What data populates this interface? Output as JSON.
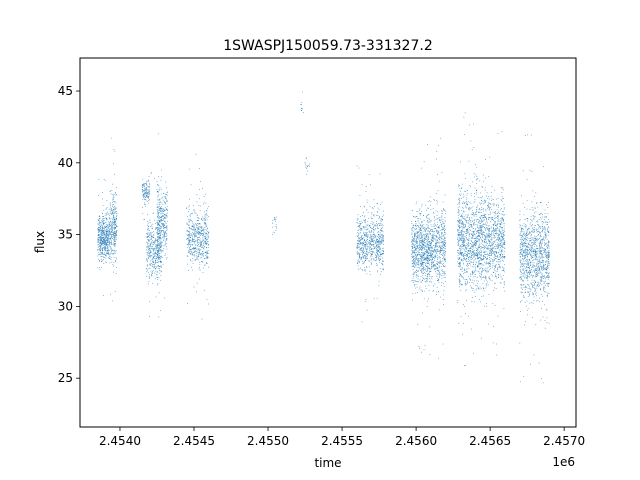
{
  "chart_data": {
    "type": "scatter",
    "title": "1SWASPJ150059.73-331327.2",
    "xlabel": "time",
    "ylabel": "flux",
    "x_offset_label": "1e6",
    "xlim": [
      2.45373,
      2.45708
    ],
    "ylim": [
      21.6,
      47.3
    ],
    "x_ticks": [
      2.454,
      2.4545,
      2.455,
      2.4555,
      2.456,
      2.4565,
      2.457
    ],
    "x_tick_labels": [
      "2.4540",
      "2.4545",
      "2.4550",
      "2.4555",
      "2.4560",
      "2.4565",
      "2.4570"
    ],
    "y_ticks": [
      25,
      30,
      35,
      40,
      45
    ],
    "y_tick_labels": [
      "25",
      "30",
      "35",
      "40",
      "45"
    ],
    "grid": false,
    "marker_color": "#1f77b4",
    "clusters": [
      {
        "x_range": [
          2.45385,
          2.45393
        ],
        "y_center": 34.8,
        "y_spread": 2.2,
        "n": 500
      },
      {
        "x_range": [
          2.45393,
          2.45398
        ],
        "y_center": 35.5,
        "y_spread": 3.0,
        "n": 300
      },
      {
        "x_range": [
          2.45415,
          2.4542
        ],
        "y_center": 38.0,
        "y_spread": 1.0,
        "n": 120
      },
      {
        "x_range": [
          2.45418,
          2.45428
        ],
        "y_center": 33.8,
        "y_spread": 2.5,
        "n": 400
      },
      {
        "x_range": [
          2.45425,
          2.45432
        ],
        "y_center": 36.0,
        "y_spread": 3.0,
        "n": 350
      },
      {
        "x_range": [
          2.45445,
          2.4546
        ],
        "y_center": 34.8,
        "y_spread": 2.6,
        "n": 550
      },
      {
        "x_range": [
          2.45503,
          2.45506
        ],
        "y_center": 35.8,
        "y_spread": 1.0,
        "n": 20
      },
      {
        "x_range": [
          2.45522,
          2.45524
        ],
        "y_center": 43.8,
        "y_spread": 0.5,
        "n": 10
      },
      {
        "x_range": [
          2.45525,
          2.45528
        ],
        "y_center": 39.8,
        "y_spread": 1.0,
        "n": 15
      },
      {
        "x_range": [
          2.4556,
          2.45578
        ],
        "y_center": 34.5,
        "y_spread": 2.5,
        "n": 700
      },
      {
        "x_range": [
          2.45597,
          2.45612
        ],
        "y_center": 34.0,
        "y_spread": 3.3,
        "n": 900
      },
      {
        "x_range": [
          2.45612,
          2.4562
        ],
        "y_center": 34.2,
        "y_spread": 3.6,
        "n": 400
      },
      {
        "x_range": [
          2.45628,
          2.4565
        ],
        "y_center": 34.5,
        "y_spread": 4.2,
        "n": 1300
      },
      {
        "x_range": [
          2.4565,
          2.4566
        ],
        "y_center": 34.5,
        "y_spread": 3.8,
        "n": 500
      },
      {
        "x_range": [
          2.4567,
          2.4569
        ],
        "y_center": 33.5,
        "y_spread": 4.0,
        "n": 1100
      }
    ]
  }
}
